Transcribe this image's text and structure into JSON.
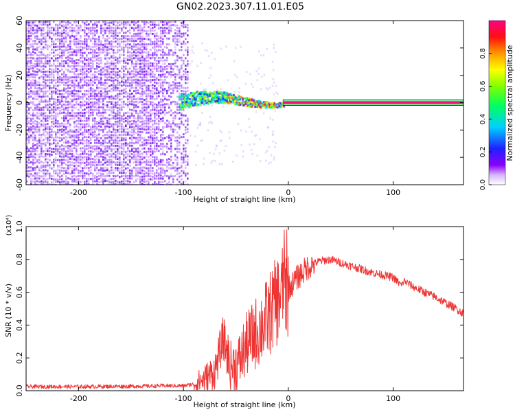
{
  "figure": {
    "title": "GN02.2023.307.11.01.E05"
  },
  "colors": {
    "snr_line": "#ee3333",
    "scatter_core": "#7a00ff",
    "axis": "#000000",
    "background": "#ffffff"
  },
  "chart_data": [
    {
      "type": "heatmap",
      "title": "",
      "xlabel": "Height of straight line (km)",
      "ylabel": "Frequency (Hz)",
      "xlim": [
        -250,
        167
      ],
      "ylim": [
        -60,
        60
      ],
      "xticks": [
        -200,
        -100,
        0,
        100
      ],
      "xtick_labels": [
        "-200",
        "-100",
        "0",
        "100"
      ],
      "yticks": [
        -60,
        -40,
        -20,
        0,
        20,
        40,
        60
      ],
      "ytick_labels": [
        "-60",
        "-40",
        "-20",
        "0",
        "20",
        "40",
        "60"
      ],
      "colorbar": {
        "label": "Normalized spectral amplitude",
        "range": [
          0,
          1
        ],
        "ticks": [
          0.0,
          0.2,
          0.4,
          0.6,
          0.8
        ],
        "tick_labels": [
          "0.0",
          "0.2",
          "0.4",
          "0.6",
          "0.8"
        ],
        "colormap": "rainbow (white → violet → blue → cyan → green → yellow → orange → red → magenta)"
      },
      "regions": [
        {
          "name": "noise",
          "x": [
            -250,
            -95
          ],
          "freq": [
            -60,
            60
          ],
          "amplitude": [
            0.05,
            0.25
          ]
        },
        {
          "name": "transition",
          "x": [
            -105,
            -10
          ],
          "freq_center": [
            -4,
            5
          ],
          "amplitude": [
            0.2,
            0.8
          ]
        },
        {
          "name": "steady",
          "x": [
            -5,
            167
          ],
          "freq": 0,
          "amplitude": 1.0
        }
      ]
    },
    {
      "type": "line",
      "title": "",
      "xlabel": "Height of straight line (km)",
      "ylabel": "SNR (10 * v/v)",
      "y_multiplier": "(x10⁴)",
      "xlim": [
        -250,
        167
      ],
      "ylim": [
        0,
        1.0
      ],
      "xticks": [
        -200,
        -100,
        0,
        100
      ],
      "xtick_labels": [
        "-200",
        "-100",
        "0",
        "100"
      ],
      "yticks": [
        0.0,
        0.2,
        0.4,
        0.6,
        0.8,
        1.0
      ],
      "ytick_labels": [
        "0.0",
        "0.2",
        "0.4",
        "0.6",
        "0.8",
        "1.0"
      ],
      "series": [
        {
          "x": [
            -250,
            -200,
            -150,
            -120,
            -100,
            -90,
            -80,
            -70,
            -62,
            -55,
            -48,
            -40,
            -30,
            -22,
            -15,
            -8,
            -3,
            0,
            10,
            20,
            30,
            40,
            60,
            80,
            100,
            108,
            110,
            120,
            140,
            160,
            167
          ],
          "y": [
            0.025,
            0.025,
            0.027,
            0.03,
            0.03,
            0.04,
            0.07,
            0.12,
            0.32,
            0.15,
            0.16,
            0.28,
            0.36,
            0.42,
            0.5,
            0.58,
            0.64,
            0.62,
            0.7,
            0.76,
            0.79,
            0.8,
            0.76,
            0.72,
            0.69,
            0.64,
            0.67,
            0.63,
            0.57,
            0.5,
            0.47
          ]
        }
      ]
    }
  ]
}
